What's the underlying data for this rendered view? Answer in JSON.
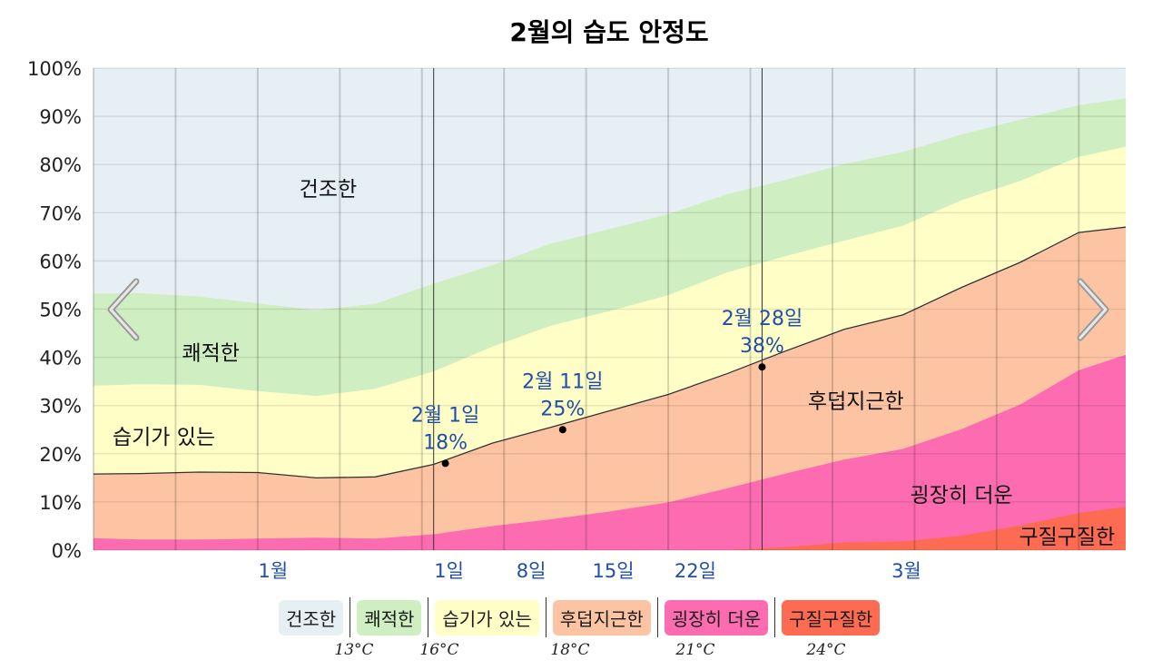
{
  "chart_data": {
    "type": "area",
    "title": "2월의 습도 안정도",
    "ylim": [
      0,
      100
    ],
    "y_ticks": [
      "0%",
      "10%",
      "20%",
      "30%",
      "40%",
      "50%",
      "60%",
      "70%",
      "80%",
      "90%",
      "100%"
    ],
    "x_ticks": [
      "1월",
      "1일",
      "8일",
      "15일",
      "22일",
      "3월"
    ],
    "x_tick_positions": [
      -14,
      1,
      8,
      15,
      22,
      40
    ],
    "x_range": [
      -29,
      59
    ],
    "month_boundaries": [
      0,
      28
    ],
    "x": [
      -29,
      -25,
      -20,
      -15,
      -10,
      -5,
      0,
      5,
      10,
      15,
      20,
      25,
      30,
      35,
      40,
      45,
      50,
      55,
      59
    ],
    "thresholds_cumulative": [
      [
        2.5,
        2.2,
        2.2,
        2.4,
        2.6,
        2.4,
        3.3,
        5.0,
        6.4,
        8.0,
        9.9,
        12.8,
        15.9,
        18.8,
        21.0,
        25.1,
        30.2,
        37.3,
        40.5
      ],
      [
        15.8,
        15.9,
        16.2,
        16.1,
        15.0,
        15.2,
        17.8,
        22.2,
        25.5,
        28.9,
        32.3,
        36.6,
        41.3,
        45.8,
        48.8,
        54.5,
        59.7,
        65.9,
        67.0
      ],
      [
        34.1,
        34.4,
        34.3,
        33.0,
        32.0,
        33.5,
        37.1,
        42.2,
        46.6,
        49.6,
        52.9,
        57.6,
        61.0,
        64.2,
        67.3,
        72.6,
        76.6,
        81.6,
        83.7
      ],
      [
        53.2,
        53.3,
        52.6,
        51.2,
        49.8,
        51.1,
        55.3,
        59.1,
        63.6,
        66.6,
        69.7,
        73.8,
        76.8,
        80.1,
        82.6,
        86.2,
        89.3,
        92.3,
        93.7
      ]
    ],
    "muggy_top": [
      0,
      0,
      0,
      0,
      0,
      0,
      0,
      0,
      0,
      0,
      0,
      0,
      0.6,
      1.6,
      1.8,
      3.0,
      5.1,
      7.7,
      9.0
    ],
    "bands": [
      {
        "name": "건조한",
        "color": "#e6eff3"
      },
      {
        "name": "쾌적한",
        "color": "#cfeec2"
      },
      {
        "name": "습기가 있는",
        "color": "#fffec7"
      },
      {
        "name": "후덥지근한",
        "color": "#fdc4a4"
      },
      {
        "name": "굉장히 더운",
        "color": "#fd6cb0"
      },
      {
        "name": "구질구질한",
        "color": "#fd6b53"
      }
    ],
    "band_labels": [
      {
        "text": "건조한",
        "x": -9,
        "y": 75
      },
      {
        "text": "쾌적한",
        "x": -19,
        "y": 41
      },
      {
        "text": "습기가 있는",
        "x": -23,
        "y": 23.5
      },
      {
        "text": "후덥지근한",
        "x": 36,
        "y": 31
      },
      {
        "text": "굉장히 더운",
        "x": 45,
        "y": 11.5
      },
      {
        "text": "구질구질한",
        "x": 54,
        "y": 2.8
      }
    ],
    "points": [
      {
        "x": 1,
        "value": 18,
        "label": "2월 1일",
        "value_label": "18%"
      },
      {
        "x": 11,
        "value": 25,
        "label": "2월 11일",
        "value_label": "25%"
      },
      {
        "x": 28,
        "value": 38,
        "label": "2월 28일",
        "value_label": "38%"
      }
    ]
  },
  "legend": {
    "items": [
      {
        "label": "건조한",
        "color": "#e6eff3"
      },
      {
        "label": "쾌적한",
        "color": "#cfeec2"
      },
      {
        "label": "습기가 있는",
        "color": "#fffec7"
      },
      {
        "label": "후덥지근한",
        "color": "#fdc4a4"
      },
      {
        "label": "굉장히 더운",
        "color": "#fd6cb0"
      },
      {
        "label": "구질구질한",
        "color": "#fd6b53"
      }
    ],
    "temps": [
      "13°C",
      "16°C",
      "18°C",
      "21°C",
      "24°C"
    ]
  },
  "nav": {
    "prev_icon": "chevron-left-icon",
    "next_icon": "chevron-right-icon"
  }
}
